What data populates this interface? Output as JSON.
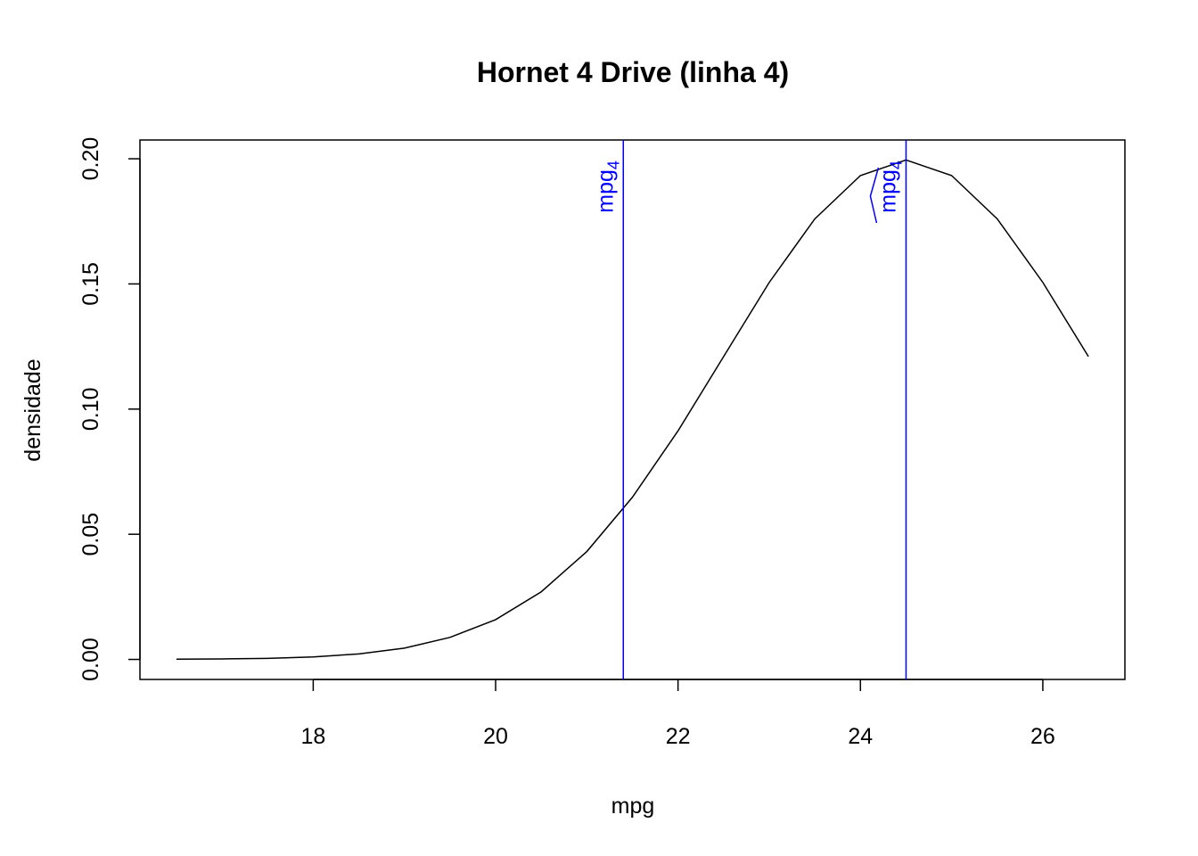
{
  "chart_data": {
    "type": "line",
    "title": "Hornet 4 Drive (linha 4)",
    "x_label": "mpg",
    "y_label": "densidade",
    "x": [
      16.5,
      17,
      17.5,
      18,
      18.5,
      19,
      19.5,
      20,
      20.5,
      21,
      21.5,
      22,
      22.5,
      23,
      23.5,
      24,
      24.5,
      25,
      25.5,
      26,
      26.5
    ],
    "series": [
      {
        "name": "densidade",
        "color": "#000000",
        "values": [
          0.0001,
          0.0002,
          0.0004,
          0.001,
          0.0022,
          0.0045,
          0.0088,
          0.0159,
          0.027,
          0.0431,
          0.0648,
          0.0913,
          0.121,
          0.1506,
          0.176,
          0.1933,
          0.1995,
          0.1933,
          0.176,
          0.1506,
          0.121
        ]
      }
    ],
    "vlines": [
      {
        "x": 21.4,
        "label": "mpg",
        "subscript": "4",
        "hat": false,
        "color": "#0000ff"
      },
      {
        "x": 24.5,
        "label": "mpg",
        "subscript": "4",
        "hat": true,
        "color": "#0000ff"
      }
    ],
    "xlim": [
      16.1,
      26.9
    ],
    "ylim": [
      -0.008,
      0.2075
    ],
    "xticks": [
      18,
      20,
      22,
      24,
      26
    ],
    "yticks": [
      {
        "value": 0,
        "label": "0.00"
      },
      {
        "value": 0.05,
        "label": "0.05"
      },
      {
        "value": 0.1,
        "label": "0.10"
      },
      {
        "value": 0.15,
        "label": "0.15"
      },
      {
        "value": 0.2,
        "label": "0.20"
      }
    ]
  }
}
